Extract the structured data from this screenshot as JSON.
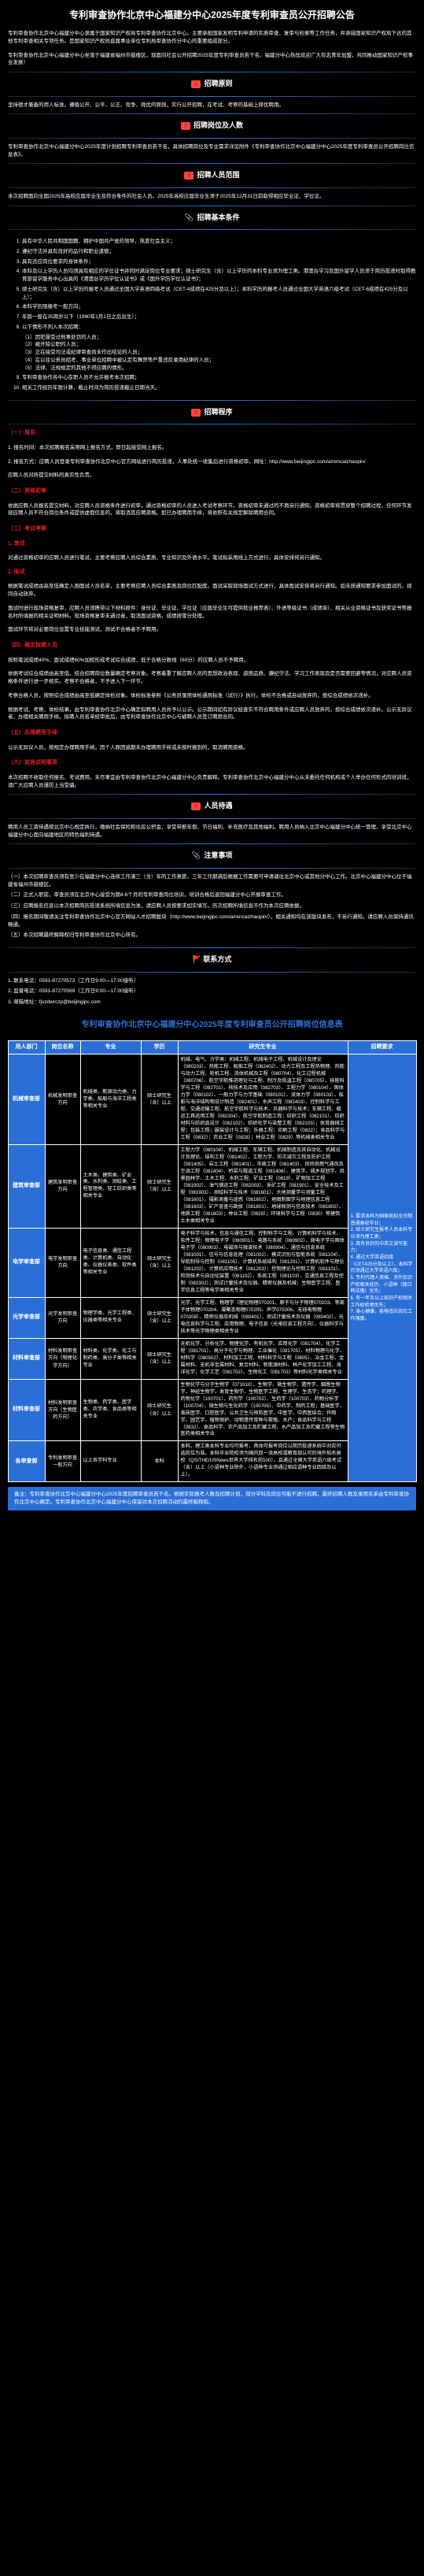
{
  "page_title": "专利审查协作北京中心福建分中心2025年度专利审查员公开招聘公告",
  "intro_p1": "专利审查协作北京中心福建分中心隶属于国家知识产权局专利审查协作北京中心。主要承担国家发明专利申请的实质审查、复审与检索等工作任务，并承接国家知识产权局下达的其他专利审查相关专项任务。是国家知识产权局直属事业单位专利局审查协作分中心的重要组成部分。",
  "intro_p2": "专利审查协作北京中心福建分中心坐落于福建省福州市鼓楼区，现面向社会公开招聘2025年度专利审查员若干名。福建分中心热忱欢迎广大有志青年加盟，共同推动国家知识产权事业发展！",
  "sec1_title": "招聘原则",
  "sec1_body": "坚持德才兼备的用人标准，遵循公开、公平、公正、竞争、择优的原则，实行公开招聘，在考试、考察的基础上择优聘用。",
  "sec2_title": "招聘岗位及人数",
  "sec2_body": "专利审查协作北京中心福建分中心2025年度计划招聘专利审查员若干名，具体招聘岗位及专业需求详见附件《专利审查协作北京中心福建分中心2025年度专利审查员公开招聘岗位信息表》。",
  "sec3_title": "招聘人员范围",
  "sec3_body": "本次招聘面向全国2025年高校应届毕业生及符合条件的社会人员。2025年高校应届毕业生须于2025年12月31日前取得相应毕业证、学位证。",
  "sec4_title": "招聘基本条件",
  "sec4_items": [
    "具有中华人民共和国国籍，拥护中国共产党的领导，热爱社会主义；",
    "遵纪守法并具有良好的品行和职业道德；",
    "具有适应岗位要求的身体条件；",
    "本科及以上学历人员均须具有相应的学位证书并同时满足岗位专业要求；硕士研究生（含）以上学历的本科专业须为理工类。港澳台学习及国外留学人员须于简历投递时取得教育部留学服务中心出具的《港澳台学历学位认证书》或《国外学历学位认证书》；",
    "硕士研究生（含）以上学历的报考人员通过全国大学英语四级考试（CET-4成绩在425分及以上）；本科学历的报考人员通过全国大学英语六级考试（CET-6成绩在425分及以上）；",
    "本科学历限报考一般方向；",
    "年龄一般在35周岁以下（1990年1月1日之后出生）；",
    "以下情形不列入本次招聘：",
    "专利审查协作各中心在职人员不允许报考本次招聘；",
    "相关工作经历年限计算，截止时间为简历投递截止日期当天。"
  ],
  "sec4_sub8": [
    "（1）因犯罪受过刑事处罚的人员；",
    "（2）被开除公职的人员；",
    "（3）正在接受司法或纪律审查尚未作出结论的人员；",
    "（4）在以往公务员招考、事业单位招聘中被认定有舞弊等严重违反录用纪律的人员；",
    "（5）法律、法规规定的其他不得应聘的情形。"
  ],
  "sec5_title": "招聘程序",
  "step1_t": "（一）报名",
  "step1_b1": "1. 报名时间：本次招聘报名采用网上报名方式，即日起接受网上报名。",
  "step1_b2": "2. 报名方式：应聘人员登录专利审查协作北京中心官方网站进行简历投递，人事处统一收集后进行资格初审。网址：http://www.beijingipc.com/a/rencaizhaopin/",
  "step1_b3": "应聘人员对所提交材料的真实性负责。",
  "step2_t": "（二）资格初审",
  "step2_b": "依据应聘人员报名提交材料，对应聘人员资格条件进行初审，通过资格初审的人员进入考试考察环节。资格初审未通过的不再另行通知。资格初审将贯穿整个招聘过程，任何环节发现应聘人员不符合岗位条件或提供虚假信息的，将取消其应聘资格。如已办理聘用手续，将依照有关规定解除聘用合同。",
  "step3_t": "（三）考试考察",
  "step3_1_t": "1. 笔试",
  "step3_1_b": "对通过资格初审的应聘人员进行笔试，主要考察应聘人员综合素质、专业知识及外语水平。笔试拟采用线上方式进行，具体安排将另行通知。",
  "step3_2_t": "2. 面试",
  "step3_2_b1": "根据笔试成绩由高至低确定入围面试人员名单，主要考察应聘人员综合素质及岗位匹配度。面试采取现场面试方式进行，具体面试安排将另行通知。如未按通知要求参加面试的，视同自动放弃。",
  "step3_2_b2": "面试时进行现场资格复审，应聘人员须携带以下材料原件：身份证、毕业证、学位证（应届毕业生可提供就业推荐表）、外语等级证书（成绩单）、相关从业资格证书及获奖证书等报名时所填报的相关证明材料。现场资格复审未通过者，取消面试资格，成绩按零分处理。",
  "step3_2_b3": "面试环节将对必要岗位设置专业技能测试，测试不合格者不予聘用。",
  "step4_t": "（四）确定拟聘人员",
  "step4_b1": "按照笔试成绩40%、面试成绩60%加权形成考试综合成绩，低于合格分数线（60分）的应聘人员不予聘用。",
  "step4_b2": "依据考试综合成绩由高至低，结合招聘岗位数量确定考察对象。考察着重了解应聘人员的思想政治表现、道德品质、遵纪守法、学习工作表现及是否需要回避等情况，对应聘人员资格条件进行进一步核实。考察不合格者，不予进入下一环节。",
  "step4_b3": "考察合格人员，按照综合成绩由高至低确定体检对象。体检标准参照《公务员录用体检通用标准（试行）》执行。体检不合格或自动放弃的，按综合成绩依次递补。",
  "step4_b4": "根据考试、考察、体检结果，由专利审查协作北京中心确定拟聘用人员并予以公示。公示期间如有异议经查实不符合聘用条件或应聘人员放弃的，按综合成绩依次递补。公示无异议者，办理相关聘用手续。拟聘人员名单经审批后，由专利审查协作北京中心与被聘人员签订聘用合同。",
  "step5_t": "（五）办理聘用手续",
  "step5_b": "公示无异议人员，按规定办理聘用手续。因个人原因逾期未办理聘用手续或未按时报到的，取消聘用资格。",
  "step6_t": "（六）其他说明事项",
  "step6_b": "本次招聘不收取任何报名、考试费用。未尽事宜由专利审查协作北京中心福建分中心负责解释。专利审查协作北京中心福建分中心从未委托任何机构或个人举办任何形式的培训班，请广大应聘人员谨防上当受骗。",
  "sec6_title": "人员待遇",
  "sec6_body": "聘用人员工资待遇按北京中心规定执行，缴纳社会保险和住房公积金，享受带薪年假、节日福利、补充医疗及其他福利。聘用人员纳入北京中心福建分中心统一管理，享受北京中心福建分中心面向福建地区的特色福利待遇。",
  "sec7_title": "注意事项",
  "sec7_items": [
    "（一）本次招聘审查员须有至少在福建分中心连续工作满三（含）年的工作意愿，三年工作期满后根据工作需要可申请调往北京中心或其他分中心工作。北京中心福建分中心位于福建省福州市鼓楼区。",
    "（二）正式入职前，审查员须在北京中心接受为期4-6个月的专利审查岗位培训，培训合格后返回福建分中心开展审查工作。",
    "（三）应聘报名信息以本次招聘简历投递系统所填信息为准，请应聘人员按要求如实填写。历次招聘所填信息不作为本次应聘依据。",
    "（四）报名期间敬请关注专利审查协作北京中心官方网站人才招聘版块（http://www.beijingipc.com/a/rencaizhaopin/），相关通知均在该版块发布，不另行通知。请应聘人员保持通讯畅通。",
    "（五）本次招聘最终解释权归专利审查协作北京中心所有。"
  ],
  "sec8_title": "联系方式",
  "contact_items": [
    "1. 联系电话：0591-87270573（工作日9:00—17:00接听）",
    "2. 监督电话：0591-87270569（工作日9:00—17:00接听）",
    "3. 邮箱地址：fjszdwrczp@beijingipc.com"
  ],
  "attach_title": "专利审查协作北京中心福建分中心2025年度专利审查员公开招聘岗位信息表",
  "table_headers": [
    "用人部门",
    "岗位名称",
    "专业",
    "学历",
    "研究生专业",
    "招聘要求"
  ],
  "rows": [
    {
      "dept": "机械审查部",
      "pos": "机械发明审查方向",
      "major": "机械类、能源动力类、力学类、船舶与海洋工程类等相关专业",
      "edu": "硕士研究生（含）以上",
      "grad": "机械、电气、力学类：机械工程、机械电子工程、机械设计及理论（080203）、热能工程、船舶工程（082402）、动力工程及工程热物理、热能与动力工程、轮机工程、流体机械及工程（080704）、化工过程机械（080706）、航空宇航推进理论与工程、制冷及低温工程（080705）、核能科学与工程（082701）、核技术及应用（082703）、工程力学（080104）、固体力学（080102）、一般力学与力学基础（080101）、流体力学（080103）、船舶与海洋结构物设计制造（082401）、水声工程（082403）、控制科学与工程、交通运输工程、航空宇航科学与技术、兵器科学与技术；车辆工程、载运工具运用工程（082304）、航空宇航制造工程；纺织工程（082101）、纺织材料与纺织品设计（082102）、纺织化学与染整工程（082103）；体育器械工程；包装工程；服装设计与工程；乐器工程；印刷工程（0822）；食品科学与工程（0832）；农业工程（0828）；林业工程（0829）等机械类相关专业",
      "req_span": true
    },
    {
      "dept": "建筑审查部",
      "pos": "建筑发明审查方向",
      "major": "土木类、建筑类、矿业类、水利类、测绘类、工程管理类、轻工纺织类等相关专业",
      "edu": "硕士研究生（含）以上",
      "grad": "工程力学（080104）、机械工程、车辆工程、机械制造及其自动化、机械设计及理论、结构工程（081402）、工程力学、防灾减灾工程及防护工程（081405）、岩土工程（081401）、市政工程（081403）、供热供燃气通风及空调工程（081404）、桥梁与隧道工程（081406）、建筑学、城乡规划学、风景园林学、土木工程、水利工程、矿业工程（0819）、矿物加工工程（081902）、油气储运工程（082003）、采矿工程（081901）、安全技术及工程（081903）、测绘科学与技术（081601）、大地测量学与测量工程（081601）、摄影测量与遥感（081602）、地图制图学与地理信息工程（081603）、矿产普查与勘探（081801）、地球探测与信息技术（081802）、地质工程（081803）；林业工程（0829）；环境科学与工程（0830）等建筑土木类相关专业"
    },
    {
      "dept": "电学审查部",
      "pos": "电学发明审查方向",
      "major": "电子信息类、通信工程类、计算机类、自动化类、仪器仪表类、软件类等相关专业",
      "edu": "硕士研究生（含）以上",
      "grad": "电子科学与技术、信息与通信工程、控制科学与工程、计算机科学与技术、软件工程；物理电子学（080901）、电路与系统（080902）、微电子学与固体电子学（080903）、电磁场与微波技术（080904）、通信与信息系统（081001）、信号与信息处理（081002）、模式识别与智能系统（081104）、导航制导与控制（081105）、计算机系统结构（081201）、计算机软件与理论（081202）、计算机应用技术（081203）；控制理论与控制工程（081101）、检测技术与自动化装置（081102）、系统工程（081103）、交通信息工程及控制（082302）；测试计量技术及仪器、精密仪器及机械；生物医学工程、医学信息工程等电学类相关专业"
    },
    {
      "dept": "光学审查部",
      "pos": "光学发明审查方向",
      "major": "物理学类、光学工程类、仪器类等相关专业",
      "edu": "硕士研究生（含）以上",
      "grad": "光学、光学工程、物理学（理论物理070201、原子与分子物理070203、等离子体物理070204、凝聚态物理070205、声学070206、无线电物理070208）、精密仪器及机械（080401）、测试计量技术及仪器（080402）、光电信息科学与工程、应用物理、电子信息（光电信息工程方向）、仪器科学与技术等光学物理类相关专业"
    },
    {
      "dept": "材料审查部",
      "pos": "材料发明审查方向（物理化学方向）",
      "major": "材料类、化学类、化工与制药类、高分子类等相关专业",
      "edu": "硕士研究生（含）以上",
      "grad": "无机化学、分析化学、物理化学、有机化学、应用化学（081704）、化学工程（081701）、高分子化学与物理、工业催化（081705）、材料物理与化学、材料学（080502）、材料加工工程、材料科学与工程（0805）、冶金工程、金属材料、无机非金属材料、复合材料、新能源材料、林产化学加工工程、海洋化学；化学工艺（081702）、生物化工（081703）等材料化学类相关专业"
    },
    {
      "dept": "材料审查部",
      "pos": "材料发明审查方向（生物医药方向）",
      "major": "生物类、药学类、医学类、农学类、食品类等相关专业",
      "edu": "硕士研究生（含）以上",
      "grad": "生物化学与分子生物学（071010）、生物学、微生物学、遗传学、细胞生物学、神经生物学、发育生物学、生物医学工程、生理学、生态学；药理学、药物化学（100701）、药剂学（100702）、生药学（100703）、药物分析学（100704）、微生物与生化药学（100705）、中药学、制药工程；基础医学、临床医学、口腔医学、公共卫生与预防医学、中医学、中西医结合；作物学、园艺学、植物保护、动物遗传育种与繁殖、水产；食品科学与工程（0832）、食品科学、农产品加工及贮藏工程、水产品加工及贮藏工程等生物医药类相关专业"
    },
    {
      "dept": "各审查部",
      "pos": "专利发明审查一般方向",
      "major": "以上各学科专业",
      "edu": "本科",
      "grad": "本科。理工类本科专业均可报考，具体可报考岗位以简历投递系统中对应可选岗位为准。本科毕业院校须为国内双一流高校或教育部认可的境外知名高校（QS/THE/USNews世界大学排名前500），且通过全国大学英语六级考试（含）以上（小语种专业除外，小语种专业须通过相应语种专业四级及以上）。",
      "req_bottom": true
    }
  ],
  "req_text": "1. 要求本科为国家统招全日制普通高校毕业；\n2. 硕士研究生报考人员本科专业须为理工类；\n3. 具有良好的中英文读写能力；\n4. 通过大学英语四级（CET425分及以上），本科学历须通过大学英语六级；\n5. 专利代理人资格、涉外知识产权相关经历、小语种（德日韩法俄）优先；\n6. 有一年及以上知识产权相关工作经验者优先；\n7. 身心健康，能够适应岗位工作强度。",
  "footnote": "备注：专利审查协作北京中心福建分中心2025年度招聘审查员若干名。根据实际报考人数及招聘计划，部分学科及岗位可能不进行招聘，最终招聘人数及录用名单由专利审查协作北京中心确定。专利审查协作北京中心福建分中心保留对本次招聘活动的最终解释权。"
}
